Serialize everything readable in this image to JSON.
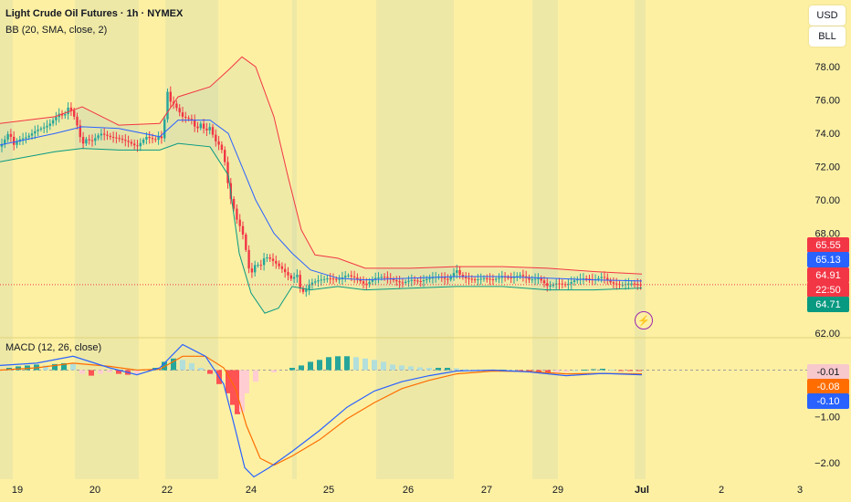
{
  "header": {
    "title": "Light Crude Oil Futures · 1h · NYMEX",
    "bb_label": "BB (20, SMA, close, 2)",
    "macd_label": "MACD (12, 26, close)"
  },
  "buttons": {
    "currency": "USD",
    "unit": "BLL"
  },
  "colors": {
    "background": "#fdf0a3",
    "session_shade": "#eee8a6",
    "up": "#26a69a",
    "down": "#f23645",
    "bb_upper": "#f23645",
    "bb_basis": "#2962ff",
    "bb_lower": "#089981",
    "macd_line": "#2962ff",
    "signal_line": "#ff6d00"
  },
  "price_tags": [
    {
      "value": "65.55",
      "color": "#f23645"
    },
    {
      "value": "65.13",
      "color": "#2962ff"
    },
    {
      "value": "64.91",
      "color": "#f23645"
    },
    {
      "value": "22:50",
      "color": "#f23645"
    },
    {
      "value": "64.71",
      "color": "#089981"
    }
  ],
  "macd_tags": [
    {
      "value": "-0.01",
      "color": "#f7c8cc",
      "text_color": "#131722"
    },
    {
      "value": "-0.08",
      "color": "#ff6d00",
      "text_color": "#ffffff"
    },
    {
      "value": "-0.10",
      "color": "#2962ff",
      "text_color": "#ffffff"
    }
  ],
  "chart_data": [
    {
      "type": "candlestick",
      "title": "Light Crude Oil Futures · 1h · NYMEX",
      "y_ticks": [
        78,
        76,
        74,
        72,
        70,
        68,
        62
      ],
      "ylim": [
        62,
        79
      ],
      "last_price": 64.91,
      "x_ticks": [
        "19",
        "20",
        "22",
        "24",
        "25",
        "26",
        "27",
        "29",
        "Jul",
        "2",
        "3"
      ],
      "price_path": [
        [
          0,
          73.2
        ],
        [
          5,
          73.6
        ],
        [
          10,
          74.1
        ],
        [
          15,
          73.3
        ],
        [
          20,
          73.6
        ],
        [
          30,
          73.8
        ],
        [
          40,
          74.2
        ],
        [
          50,
          74.4
        ],
        [
          55,
          74.6
        ],
        [
          60,
          74.9
        ],
        [
          65,
          75.2
        ],
        [
          70,
          75.0
        ],
        [
          75,
          75.6
        ],
        [
          80,
          75.2
        ],
        [
          85,
          74.4
        ],
        [
          90,
          73.3
        ],
        [
          95,
          73.7
        ],
        [
          100,
          73.5
        ],
        [
          110,
          74.0
        ],
        [
          120,
          73.8
        ],
        [
          130,
          73.7
        ],
        [
          140,
          73.5
        ],
        [
          150,
          73.2
        ],
        [
          160,
          73.8
        ],
        [
          170,
          73.6
        ],
        [
          175,
          73.9
        ],
        [
          178,
          73.6
        ],
        [
          180,
          74.5
        ],
        [
          182,
          78.0
        ],
        [
          184,
          76.0
        ],
        [
          190,
          75.8
        ],
        [
          200,
          75.0
        ],
        [
          210,
          74.8
        ],
        [
          215,
          74.2
        ],
        [
          220,
          74.6
        ],
        [
          225,
          74.1
        ],
        [
          230,
          74.4
        ],
        [
          235,
          73.6
        ],
        [
          240,
          73.3
        ],
        [
          245,
          72.8
        ],
        [
          248,
          71.5
        ],
        [
          252,
          70.2
        ],
        [
          256,
          69.5
        ],
        [
          260,
          68.7
        ],
        [
          265,
          68.2
        ],
        [
          270,
          66.8
        ],
        [
          274,
          65.4
        ],
        [
          280,
          66.2
        ],
        [
          285,
          66.0
        ],
        [
          290,
          66.6
        ],
        [
          295,
          66.5
        ],
        [
          300,
          66.3
        ],
        [
          310,
          65.8
        ],
        [
          320,
          65.2
        ],
        [
          325,
          65.6
        ],
        [
          330,
          64.4
        ],
        [
          335,
          64.6
        ],
        [
          340,
          65.0
        ],
        [
          350,
          65.2
        ],
        [
          360,
          65.3
        ],
        [
          370,
          65.2
        ],
        [
          380,
          65.5
        ],
        [
          390,
          65.3
        ],
        [
          400,
          64.9
        ],
        [
          410,
          65.3
        ],
        [
          420,
          65.4
        ],
        [
          430,
          65.2
        ],
        [
          440,
          65.0
        ],
        [
          450,
          65.2
        ],
        [
          460,
          65.1
        ],
        [
          470,
          65.3
        ],
        [
          480,
          65.4
        ],
        [
          490,
          65.2
        ],
        [
          500,
          65.8
        ],
        [
          505,
          65.4
        ],
        [
          510,
          65.3
        ],
        [
          520,
          65.2
        ],
        [
          530,
          65.3
        ],
        [
          540,
          65.2
        ],
        [
          550,
          65.4
        ],
        [
          560,
          65.3
        ],
        [
          570,
          65.5
        ],
        [
          580,
          65.2
        ],
        [
          590,
          65.3
        ],
        [
          600,
          64.8
        ],
        [
          610,
          65.0
        ],
        [
          620,
          64.9
        ],
        [
          630,
          65.2
        ],
        [
          640,
          65.3
        ],
        [
          650,
          65.2
        ],
        [
          660,
          65.4
        ],
        [
          670,
          65.0
        ],
        [
          680,
          64.9
        ],
        [
          690,
          65.0
        ],
        [
          700,
          64.91
        ]
      ],
      "bb_upper": [
        [
          0,
          74.6
        ],
        [
          60,
          75.0
        ],
        [
          90,
          75.6
        ],
        [
          130,
          74.5
        ],
        [
          175,
          74.6
        ],
        [
          195,
          76.2
        ],
        [
          230,
          76.8
        ],
        [
          250,
          77.8
        ],
        [
          265,
          78.6
        ],
        [
          280,
          78.0
        ],
        [
          300,
          75.0
        ],
        [
          315,
          71.5
        ],
        [
          330,
          68.2
        ],
        [
          345,
          66.7
        ],
        [
          370,
          66.5
        ],
        [
          400,
          65.9
        ],
        [
          450,
          65.9
        ],
        [
          500,
          66.0
        ],
        [
          550,
          66.0
        ],
        [
          600,
          65.9
        ],
        [
          650,
          65.7
        ],
        [
          703,
          65.55
        ]
      ],
      "bb_basis": [
        [
          0,
          73.3
        ],
        [
          60,
          74.0
        ],
        [
          90,
          74.4
        ],
        [
          130,
          74.3
        ],
        [
          175,
          73.8
        ],
        [
          195,
          74.8
        ],
        [
          230,
          74.8
        ],
        [
          250,
          74.0
        ],
        [
          265,
          72.0
        ],
        [
          280,
          70.0
        ],
        [
          300,
          68.0
        ],
        [
          320,
          66.8
        ],
        [
          340,
          65.8
        ],
        [
          370,
          65.3
        ],
        [
          400,
          65.2
        ],
        [
          450,
          65.3
        ],
        [
          500,
          65.4
        ],
        [
          550,
          65.4
        ],
        [
          600,
          65.3
        ],
        [
          650,
          65.2
        ],
        [
          703,
          65.13
        ]
      ],
      "bb_lower": [
        [
          0,
          72.3
        ],
        [
          60,
          72.9
        ],
        [
          90,
          73.1
        ],
        [
          130,
          73.0
        ],
        [
          175,
          73.0
        ],
        [
          195,
          73.4
        ],
        [
          230,
          73.2
        ],
        [
          250,
          71.5
        ],
        [
          262,
          66.8
        ],
        [
          275,
          64.4
        ],
        [
          290,
          63.2
        ],
        [
          305,
          63.5
        ],
        [
          320,
          64.8
        ],
        [
          340,
          64.6
        ],
        [
          370,
          64.8
        ],
        [
          400,
          64.6
        ],
        [
          450,
          64.7
        ],
        [
          500,
          64.8
        ],
        [
          550,
          64.8
        ],
        [
          600,
          64.6
        ],
        [
          650,
          64.6
        ],
        [
          703,
          64.71
        ]
      ],
      "sessions": [
        [
          0,
          14
        ],
        [
          82,
          152
        ],
        [
          181,
          239
        ],
        [
          320,
          325
        ],
        [
          412,
          497
        ],
        [
          583,
          611
        ],
        [
          695,
          707
        ]
      ]
    },
    {
      "type": "line",
      "title": "MACD (12, 26, close)",
      "y_ticks": [
        -1.0,
        -2.0
      ],
      "ylim": [
        -2.35,
        0.6
      ],
      "series": [
        {
          "name": "MACD",
          "points": [
            [
              0,
              0.1
            ],
            [
              40,
              0.15
            ],
            [
              80,
              0.3
            ],
            [
              120,
              0.05
            ],
            [
              150,
              -0.1
            ],
            [
              175,
              0.05
            ],
            [
              200,
              0.55
            ],
            [
              225,
              0.3
            ],
            [
              245,
              -0.3
            ],
            [
              258,
              -1.3
            ],
            [
              268,
              -2.1
            ],
            [
              278,
              -2.3
            ],
            [
              295,
              -2.1
            ],
            [
              320,
              -1.75
            ],
            [
              350,
              -1.3
            ],
            [
              380,
              -0.8
            ],
            [
              410,
              -0.45
            ],
            [
              440,
              -0.25
            ],
            [
              470,
              -0.12
            ],
            [
              500,
              -0.02
            ],
            [
              540,
              0.0
            ],
            [
              580,
              -0.04
            ],
            [
              620,
              -0.12
            ],
            [
              660,
              -0.07
            ],
            [
              703,
              -0.1
            ]
          ]
        },
        {
          "name": "Signal",
          "points": [
            [
              0,
              0.0
            ],
            [
              40,
              0.05
            ],
            [
              80,
              0.15
            ],
            [
              120,
              0.08
            ],
            [
              150,
              0.0
            ],
            [
              175,
              0.02
            ],
            [
              200,
              0.3
            ],
            [
              225,
              0.3
            ],
            [
              245,
              0.05
            ],
            [
              258,
              -0.4
            ],
            [
              270,
              -1.2
            ],
            [
              285,
              -1.9
            ],
            [
              300,
              -2.05
            ],
            [
              320,
              -1.85
            ],
            [
              350,
              -1.5
            ],
            [
              380,
              -1.05
            ],
            [
              410,
              -0.7
            ],
            [
              440,
              -0.4
            ],
            [
              470,
              -0.22
            ],
            [
              500,
              -0.08
            ],
            [
              540,
              -0.02
            ],
            [
              580,
              -0.03
            ],
            [
              620,
              -0.08
            ],
            [
              660,
              -0.07
            ],
            [
              703,
              -0.08
            ]
          ]
        }
      ],
      "histogram": [
        [
          10,
          0.05
        ],
        [
          20,
          0.08
        ],
        [
          30,
          0.1
        ],
        [
          40,
          0.12
        ],
        [
          50,
          0.1
        ],
        [
          60,
          0.13
        ],
        [
          70,
          0.15
        ],
        [
          80,
          0.14
        ],
        [
          90,
          -0.08
        ],
        [
          100,
          -0.12
        ],
        [
          110,
          -0.08
        ],
        [
          120,
          -0.05
        ],
        [
          130,
          -0.08
        ],
        [
          140,
          -0.1
        ],
        [
          150,
          -0.08
        ],
        [
          160,
          0.02
        ],
        [
          170,
          0.05
        ],
        [
          180,
          0.18
        ],
        [
          190,
          0.25
        ],
        [
          200,
          0.22
        ],
        [
          210,
          0.15
        ],
        [
          220,
          0.05
        ],
        [
          230,
          -0.08
        ],
        [
          240,
          -0.3
        ],
        [
          250,
          -0.5
        ],
        [
          255,
          -0.75
        ],
        [
          260,
          -0.95
        ],
        [
          265,
          -0.9
        ],
        [
          270,
          -0.5
        ],
        [
          280,
          -0.25
        ],
        [
          300,
          -0.05
        ],
        [
          320,
          0.05
        ],
        [
          330,
          0.1
        ],
        [
          340,
          0.18
        ],
        [
          350,
          0.22
        ],
        [
          360,
          0.28
        ],
        [
          370,
          0.3
        ],
        [
          380,
          0.3
        ],
        [
          390,
          0.28
        ],
        [
          400,
          0.25
        ],
        [
          410,
          0.22
        ],
        [
          420,
          0.18
        ],
        [
          430,
          0.12
        ],
        [
          440,
          0.1
        ],
        [
          450,
          0.08
        ],
        [
          460,
          0.06
        ],
        [
          470,
          0.05
        ],
        [
          480,
          0.05
        ],
        [
          490,
          0.05
        ],
        [
          500,
          0.04
        ],
        [
          510,
          0.02
        ],
        [
          520,
          0.01
        ],
        [
          530,
          0.0
        ],
        [
          540,
          0.01
        ],
        [
          550,
          0.01
        ],
        [
          560,
          0.0
        ],
        [
          570,
          -0.03
        ],
        [
          580,
          -0.05
        ],
        [
          590,
          -0.05
        ],
        [
          600,
          -0.06
        ],
        [
          610,
          -0.05
        ],
        [
          620,
          -0.04
        ],
        [
          630,
          0.0
        ],
        [
          640,
          0.01
        ],
        [
          650,
          0.02
        ],
        [
          660,
          0.03
        ],
        [
          670,
          0.01
        ],
        [
          680,
          -0.01
        ],
        [
          690,
          -0.01
        ],
        [
          700,
          -0.01
        ]
      ]
    }
  ]
}
